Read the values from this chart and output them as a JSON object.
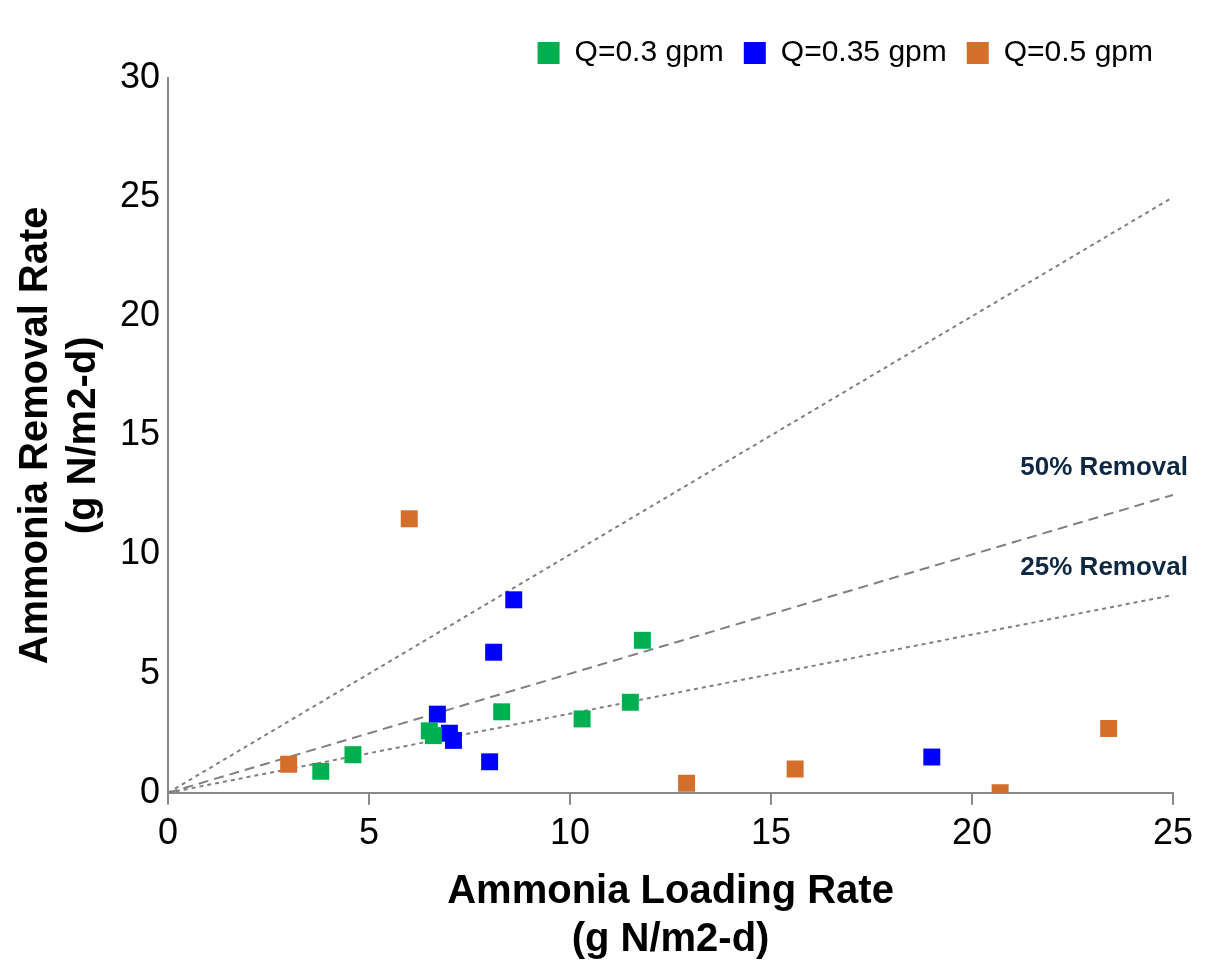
{
  "chart_data": {
    "type": "scatter",
    "xlabel": "Ammonia Loading Rate\n(g N/m2-d)",
    "ylabel": "Ammonia Removal Rate\n(g N/m2-d)",
    "xlim": [
      0,
      25
    ],
    "xticks": [
      0,
      5,
      10,
      15,
      20,
      25
    ],
    "ylim": [
      0,
      30
    ],
    "yticks": [
      0,
      5,
      10,
      15,
      20,
      25,
      30
    ],
    "grid": false,
    "legend": "top right",
    "marker": "square",
    "series": [
      {
        "name": "Q=0.3 gpm",
        "color": "#00b050",
        "x": [
          3.8,
          4.6,
          6.5,
          6.6,
          8.3,
          10.3,
          11.5,
          11.8
        ],
        "values": [
          0.9,
          1.6,
          2.6,
          2.4,
          3.4,
          3.1,
          3.8,
          6.4
        ]
      },
      {
        "name": "Q=0.35 gpm",
        "color": "#0000ff",
        "x": [
          6.7,
          7.0,
          7.1,
          8.1,
          8.6,
          8.0,
          19.0
        ],
        "values": [
          3.3,
          2.5,
          2.2,
          5.9,
          8.1,
          1.3,
          1.5
        ]
      },
      {
        "name": "Q=0.5 gpm",
        "color": "#d36f2b",
        "x": [
          3.0,
          6.0,
          12.9,
          15.6,
          20.7,
          23.4
        ],
        "values": [
          1.2,
          11.5,
          0.4,
          1.0,
          0.0,
          2.7
        ]
      },
      {
        "type": "line",
        "color": "#808080",
        "line_style": "dotted",
        "marker": "none",
        "x": [
          0,
          25
        ],
        "values": [
          0,
          25
        ]
      },
      {
        "type": "line",
        "name": "50% Removal",
        "color": "#808080",
        "line_style": "dashed",
        "marker": "none",
        "x": [
          0,
          25
        ],
        "values": [
          0,
          12.5
        ]
      },
      {
        "type": "line",
        "name": "25% Removal",
        "color": "#808080",
        "line_style": "dotted",
        "marker": "none",
        "x": [
          0,
          25
        ],
        "values": [
          0,
          8.3
        ]
      }
    ]
  }
}
